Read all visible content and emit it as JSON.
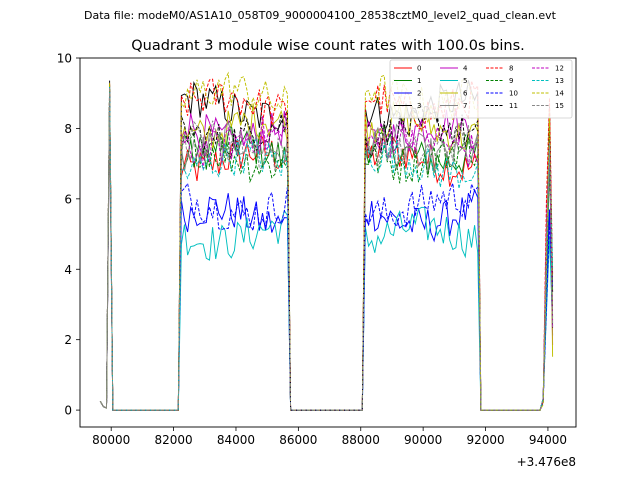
{
  "chart_data": {
    "type": "line",
    "suptitle": "Data file: modeM0/AS1A10_058T09_9000004100_28538cztM0_level2_quad_clean.evt",
    "title": "Quadrant 3 module wise count rates with 100.0s bins.",
    "xlabel": "",
    "ylabel": "",
    "x_offset_label": "+3.476e8",
    "xlim": [
      79000,
      94900
    ],
    "ylim": [
      -0.48,
      10.0
    ],
    "x_ticks": [
      80000,
      82000,
      84000,
      86000,
      88000,
      90000,
      92000,
      94000
    ],
    "x_tick_labels": [
      "80000",
      "82000",
      "84000",
      "86000",
      "88000",
      "90000",
      "92000",
      "94000"
    ],
    "y_ticks": [
      0,
      2,
      4,
      6,
      8,
      10
    ],
    "y_tick_labels": [
      "0",
      "2",
      "4",
      "6",
      "8",
      "10"
    ],
    "grid": false,
    "legend_position": "top-right",
    "shape": {
      "peak_times": [
        79950
      ],
      "active_intervals": [
        [
          82200,
          85700
        ],
        [
          88100,
          91800
        ],
        [
          93950,
          94200
        ]
      ],
      "bin": 100
    },
    "series": [
      {
        "name": "0",
        "color": "#ff0000",
        "dash": "solid",
        "level": 7.1
      },
      {
        "name": "1",
        "color": "#008000",
        "dash": "solid",
        "level": 7.3
      },
      {
        "name": "2",
        "color": "#0000ff",
        "dash": "solid",
        "level": 5.5
      },
      {
        "name": "3",
        "color": "#000000",
        "dash": "solid",
        "level": 8.6
      },
      {
        "name": "4",
        "color": "#bf00bf",
        "dash": "solid",
        "level": 7.9
      },
      {
        "name": "5",
        "color": "#00bfbf",
        "dash": "solid",
        "level": 5.0
      },
      {
        "name": "6",
        "color": "#bfbf00",
        "dash": "solid",
        "level": 8.0
      },
      {
        "name": "7",
        "color": "#888888",
        "dash": "solid",
        "level": 7.4
      },
      {
        "name": "8",
        "color": "#ff0000",
        "dash": "dashed",
        "level": 8.7
      },
      {
        "name": "9",
        "color": "#008000",
        "dash": "dashed",
        "level": 7.2
      },
      {
        "name": "10",
        "color": "#0000ff",
        "dash": "dashed",
        "level": 5.8
      },
      {
        "name": "11",
        "color": "#000000",
        "dash": "dashed",
        "level": 7.9
      },
      {
        "name": "12",
        "color": "#bf00bf",
        "dash": "dashed",
        "level": 7.6
      },
      {
        "name": "13",
        "color": "#00bfbf",
        "dash": "dashed",
        "level": 7.0
      },
      {
        "name": "14",
        "color": "#bfbf00",
        "dash": "dashed",
        "level": 8.9
      },
      {
        "name": "15",
        "color": "#888888",
        "dash": "dashed",
        "level": 7.5
      }
    ]
  }
}
